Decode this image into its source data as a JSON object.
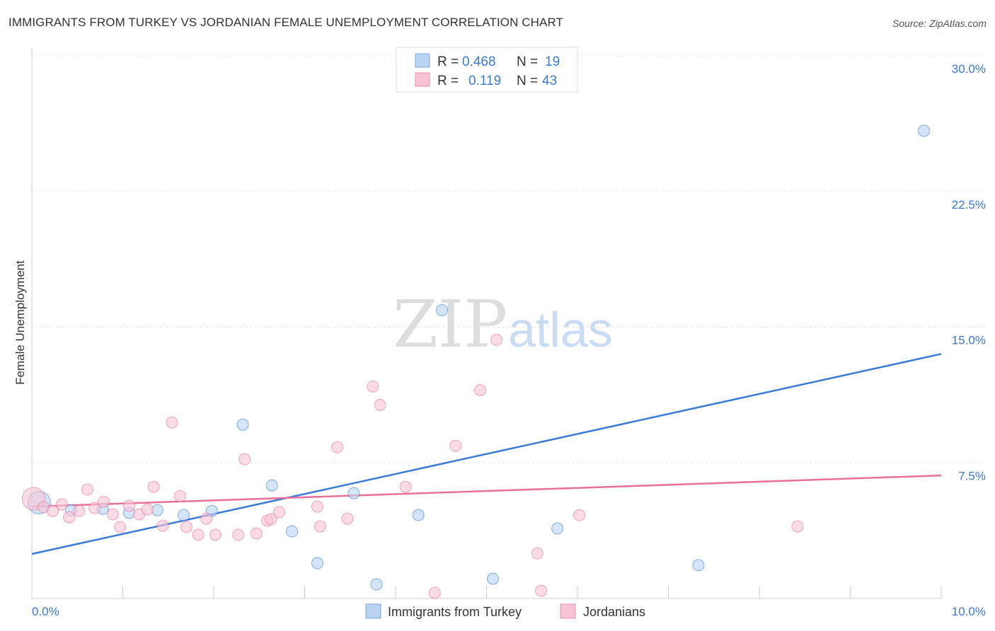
{
  "title": "IMMIGRANTS FROM TURKEY VS JORDANIAN FEMALE UNEMPLOYMENT CORRELATION CHART",
  "source": "Source: ZipAtlas.com",
  "watermark": "ZIPatlas",
  "colors": {
    "blue": "#3a7bd5",
    "pink": "#e8709a",
    "blue_fill": "#b9d3f5",
    "pink_fill": "#f8c3d4"
  },
  "chart_data": {
    "type": "scatter",
    "title": "IMMIGRANTS FROM TURKEY VS JORDANIAN FEMALE UNEMPLOYMENT CORRELATION CHART",
    "xlabel": "",
    "ylabel": "Female Unemployment",
    "xlim": [
      0,
      10
    ],
    "ylim": [
      0,
      30
    ],
    "x_tick_labels": [
      "0.0%",
      "10.0%"
    ],
    "y_ticks": [
      7.5,
      15,
      22.5,
      30
    ],
    "y_tick_labels": [
      "7.5%",
      "15.0%",
      "22.5%",
      "30.0%"
    ],
    "legend_stats": [
      {
        "r_label": "R =",
        "r": "0.468",
        "n_label": "N =",
        "n": "19"
      },
      {
        "r_label": "R =",
        "r": "0.119",
        "n_label": "N =",
        "n": "43"
      }
    ],
    "series": [
      {
        "name": "Immigrants from Turkey",
        "trend": [
          [
            0,
            2.46
          ],
          [
            10,
            13.52
          ]
        ],
        "points": [
          [
            0.08,
            5.3
          ],
          [
            0.43,
            4.88
          ],
          [
            0.78,
            4.96
          ],
          [
            1.07,
            4.73
          ],
          [
            1.38,
            4.88
          ],
          [
            1.67,
            4.61
          ],
          [
            1.98,
            4.84
          ],
          [
            2.32,
            9.61
          ],
          [
            2.64,
            6.25
          ],
          [
            2.86,
            3.71
          ],
          [
            3.14,
            1.95
          ],
          [
            3.54,
            5.82
          ],
          [
            3.79,
            0.78
          ],
          [
            4.25,
            4.61
          ],
          [
            4.51,
            15.94
          ],
          [
            5.07,
            1.09
          ],
          [
            5.78,
            3.87
          ],
          [
            7.33,
            1.84
          ],
          [
            9.81,
            25.86
          ]
        ]
      },
      {
        "name": "Jordanians",
        "trend": [
          [
            0,
            5.08
          ],
          [
            10,
            6.8
          ]
        ],
        "points": [
          [
            0.02,
            5.51
          ],
          [
            0.13,
            5.04
          ],
          [
            0.23,
            4.84
          ],
          [
            0.33,
            5.2
          ],
          [
            0.41,
            4.49
          ],
          [
            0.52,
            4.84
          ],
          [
            0.61,
            6.02
          ],
          [
            0.69,
            5.0
          ],
          [
            0.79,
            5.35
          ],
          [
            0.89,
            4.65
          ],
          [
            0.97,
            3.95
          ],
          [
            1.07,
            5.12
          ],
          [
            1.18,
            4.65
          ],
          [
            1.27,
            4.92
          ],
          [
            1.34,
            6.17
          ],
          [
            1.44,
            4.02
          ],
          [
            1.54,
            9.73
          ],
          [
            1.63,
            5.66
          ],
          [
            1.7,
            3.95
          ],
          [
            1.83,
            3.52
          ],
          [
            1.92,
            4.41
          ],
          [
            2.02,
            3.52
          ],
          [
            2.27,
            3.52
          ],
          [
            2.34,
            7.7
          ],
          [
            2.47,
            3.59
          ],
          [
            2.59,
            4.3
          ],
          [
            2.63,
            4.38
          ],
          [
            2.72,
            4.77
          ],
          [
            3.14,
            5.08
          ],
          [
            3.17,
            3.98
          ],
          [
            3.36,
            8.36
          ],
          [
            3.47,
            4.41
          ],
          [
            3.75,
            11.72
          ],
          [
            3.83,
            10.7
          ],
          [
            4.11,
            6.17
          ],
          [
            4.43,
            0.31
          ],
          [
            4.66,
            8.44
          ],
          [
            4.93,
            11.52
          ],
          [
            5.11,
            14.3
          ],
          [
            5.56,
            2.5
          ],
          [
            5.6,
            0.43
          ],
          [
            6.02,
            4.61
          ],
          [
            8.42,
            3.98
          ]
        ]
      }
    ],
    "legend": "bottom-center"
  }
}
